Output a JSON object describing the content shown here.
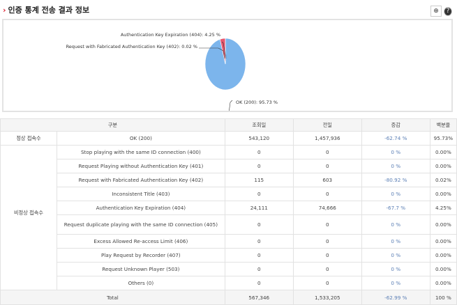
{
  "header": {
    "title": "인증 통계 전송 결과 정보",
    "zoom_icon": "plus-circle-icon",
    "help_icon": "question-icon"
  },
  "chart_data": {
    "type": "pie",
    "slices": [
      {
        "label": "OK (200): 95.73 %",
        "name": "OK (200)",
        "value": 95.73,
        "color": "#7cb5ec"
      },
      {
        "label": "Request with Fabricated Authentication Key (402): 0.02 %",
        "name": "Request with Fabricated Authentication Key (402)",
        "value": 0.02,
        "color": "#f0a"
      },
      {
        "label": "Authentication Key Expiration (404): 4.25 %",
        "name": "Authentication Key Expiration (404)",
        "value": 4.25,
        "color": "#e8586f"
      }
    ]
  },
  "table": {
    "headers": [
      "구분",
      "조회일",
      "전일",
      "증감",
      "백분율"
    ],
    "groups": {
      "normal": "정상 접속수",
      "abnormal": "비정상 접속수"
    },
    "rows": [
      [
        "OK (200)",
        "543,120",
        "1,457,936",
        "-62.74 %",
        "95.73%"
      ],
      [
        "Stop playing with the same ID connection (400)",
        "0",
        "0",
        "0 %",
        "0.00%"
      ],
      [
        "Request Playing without Authentication Key (401)",
        "0",
        "0",
        "0 %",
        "0.00%"
      ],
      [
        "Request with Fabricated Authentication Key (402)",
        "115",
        "603",
        "-80.92 %",
        "0.02%"
      ],
      [
        "Inconsistent Title (403)",
        "0",
        "0",
        "0 %",
        "0.00%"
      ],
      [
        "Authentication Key Expiration (404)",
        "24,111",
        "74,666",
        "-67.7 %",
        "4.25%"
      ],
      [
        "Request duplicate playing with the same ID connection (405)",
        "0",
        "0",
        "0 %",
        "0.00%"
      ],
      [
        "Excess Allowed Re-access Limit (406)",
        "0",
        "0",
        "0 %",
        "0.00%"
      ],
      [
        "Play Request by Recorder (407)",
        "0",
        "0",
        "0 %",
        "0.00%"
      ],
      [
        "Request Unknown Player (503)",
        "0",
        "0",
        "0 %",
        "0.00%"
      ],
      [
        "Others (0)",
        "0",
        "0",
        "0 %",
        "0.00%"
      ]
    ],
    "total": [
      "Total",
      "567,346",
      "1,533,205",
      "-62.99 %",
      "100 %"
    ]
  }
}
